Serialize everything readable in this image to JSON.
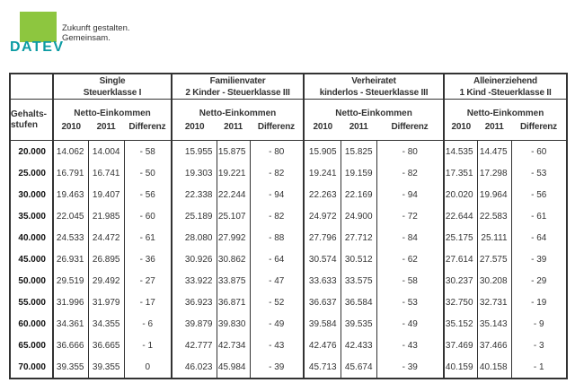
{
  "brand": {
    "wordmark": "DATEV",
    "tagline_line1": "Zukunft gestalten.",
    "tagline_line2": "Gemeinsam.",
    "logo_green": "#8dc63f",
    "wordmark_teal": "#0b9ba3"
  },
  "table": {
    "row_header": {
      "line1": "Gehalts-",
      "line2": "stufen"
    },
    "groups": [
      {
        "title_line1": "Single",
        "title_line2": "Steuerklasse I",
        "subtitle": "Netto-Einkommen",
        "col_headers": [
          "2010",
          "2011",
          "Differenz"
        ]
      },
      {
        "title_line1": "Familienvater",
        "title_line2": "2 Kinder - Steuerklasse III",
        "subtitle": "Netto-Einkommen",
        "col_headers": [
          "2010",
          "2011",
          "Differenz"
        ]
      },
      {
        "title_line1": "Verheiratet",
        "title_line2": "kinderlos - Steuerklasse III",
        "subtitle": "Netto-Einkommen",
        "col_headers": [
          "2010",
          "2011",
          "Differenz"
        ]
      },
      {
        "title_line1": "Alleinerziehend",
        "title_line2": "1 Kind -Steuerklasse II",
        "subtitle": "Netto-Einkommen",
        "col_headers": [
          "2010",
          "2011",
          "Differenz"
        ]
      }
    ],
    "rows": [
      {
        "gehalt": "20.000",
        "cells": [
          "14.062",
          "14.004",
          "- 58",
          "15.955",
          "15.875",
          "- 80",
          "15.905",
          "15.825",
          "- 80",
          "14.535",
          "14.475",
          "- 60"
        ]
      },
      {
        "gehalt": "25.000",
        "cells": [
          "16.791",
          "16.741",
          "- 50",
          "19.303",
          "19.221",
          "- 82",
          "19.241",
          "19.159",
          "- 82",
          "17.351",
          "17.298",
          "- 53"
        ]
      },
      {
        "gehalt": "30.000",
        "cells": [
          "19.463",
          "19.407",
          "- 56",
          "22.338",
          "22.244",
          "- 94",
          "22.263",
          "22.169",
          "- 94",
          "20.020",
          "19.964",
          "- 56"
        ]
      },
      {
        "gehalt": "35.000",
        "cells": [
          "22.045",
          "21.985",
          "- 60",
          "25.189",
          "25.107",
          "- 82",
          "24.972",
          "24.900",
          "- 72",
          "22.644",
          "22.583",
          "- 61"
        ]
      },
      {
        "gehalt": "40.000",
        "cells": [
          "24.533",
          "24.472",
          "- 61",
          "28.080",
          "27.992",
          "- 88",
          "27.796",
          "27.712",
          "- 84",
          "25.175",
          "25.111",
          "- 64"
        ]
      },
      {
        "gehalt": "45.000",
        "cells": [
          "26.931",
          "26.895",
          "- 36",
          "30.926",
          "30.862",
          "- 64",
          "30.574",
          "30.512",
          "- 62",
          "27.614",
          "27.575",
          "- 39"
        ]
      },
      {
        "gehalt": "50.000",
        "cells": [
          "29.519",
          "29.492",
          "- 27",
          "33.922",
          "33.875",
          "- 47",
          "33.633",
          "33.575",
          "- 58",
          "30.237",
          "30.208",
          "- 29"
        ]
      },
      {
        "gehalt": "55.000",
        "cells": [
          "31.996",
          "31.979",
          "- 17",
          "36.923",
          "36.871",
          "- 52",
          "36.637",
          "36.584",
          "- 53",
          "32.750",
          "32.731",
          "- 19"
        ]
      },
      {
        "gehalt": "60.000",
        "cells": [
          "34.361",
          "34.355",
          "- 6",
          "39.879",
          "39.830",
          "- 49",
          "39.584",
          "39.535",
          "- 49",
          "35.152",
          "35.143",
          "- 9"
        ]
      },
      {
        "gehalt": "65.000",
        "cells": [
          "36.666",
          "36.665",
          "- 1",
          "42.777",
          "42.734",
          "- 43",
          "42.476",
          "42.433",
          "- 43",
          "37.469",
          "37.466",
          "- 3"
        ]
      },
      {
        "gehalt": "70.000",
        "cells": [
          "39.355",
          "39.355",
          "0",
          "46.023",
          "45.984",
          "- 39",
          "45.713",
          "45.674",
          "- 39",
          "40.159",
          "40.158",
          "- 1"
        ]
      }
    ]
  }
}
